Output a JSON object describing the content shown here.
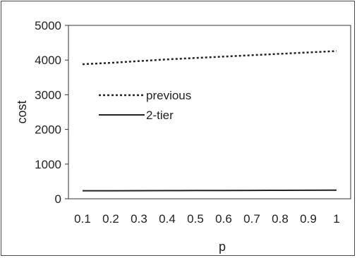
{
  "chart_data": {
    "type": "line",
    "x": [
      0.1,
      0.2,
      0.3,
      0.4,
      0.5,
      0.6,
      0.7,
      0.8,
      0.9,
      1
    ],
    "x_tick_labels": [
      "0.1",
      "0.2",
      "0.3",
      "0.4",
      "0.5",
      "0.6",
      "0.7",
      "0.8",
      "0.9",
      "1"
    ],
    "y_ticks": [
      0,
      1000,
      2000,
      3000,
      4000,
      5000
    ],
    "y_tick_labels": [
      "0",
      "1000",
      "2000",
      "3000",
      "4000",
      "5000"
    ],
    "ylim": [
      0,
      5000
    ],
    "xlabel": "p",
    "ylabel": "cost",
    "grid": false,
    "legend_position": "center-left",
    "series": [
      {
        "name": "previous",
        "style": "dotted",
        "color": "#222222",
        "values": [
          3880,
          3920,
          3970,
          4020,
          4060,
          4100,
          4140,
          4180,
          4220,
          4260
        ]
      },
      {
        "name": "2-tier",
        "style": "solid",
        "color": "#222222",
        "values": [
          230,
          232,
          234,
          236,
          238,
          240,
          242,
          244,
          246,
          248
        ]
      }
    ]
  }
}
